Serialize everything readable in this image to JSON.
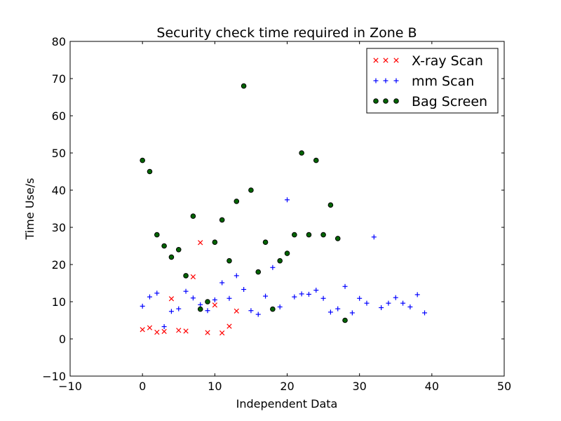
{
  "chart_data": {
    "type": "scatter",
    "title": "Security check time required in Zone B",
    "xlabel": "Independent Data",
    "ylabel": "Time Use/s",
    "xlim": [
      -10,
      50
    ],
    "ylim": [
      -10,
      80
    ],
    "xticks": [
      -10,
      0,
      10,
      20,
      30,
      40,
      50
    ],
    "yticks": [
      -10,
      0,
      10,
      20,
      30,
      40,
      50,
      60,
      70,
      80
    ],
    "xtick_labels": [
      "−10",
      "0",
      "10",
      "20",
      "30",
      "40",
      "50"
    ],
    "ytick_labels": [
      "−10",
      "0",
      "10",
      "20",
      "30",
      "40",
      "50",
      "60",
      "70",
      "80"
    ],
    "grid": false,
    "legend_position": "top-right",
    "series": [
      {
        "name": "X-ray Scan",
        "marker": "x",
        "color": "#ff0000",
        "x": [
          0,
          1,
          2,
          3,
          4,
          5,
          6,
          7,
          8,
          9,
          10,
          11,
          12,
          13
        ],
        "y": [
          2.5,
          3,
          1.8,
          2,
          10.8,
          2.3,
          2.1,
          16.7,
          25.9,
          1.7,
          9.1,
          1.6,
          3.4,
          7.5
        ]
      },
      {
        "name": "mm Scan",
        "marker": "+",
        "color": "#0000ff",
        "x": [
          0,
          1,
          2,
          3,
          4,
          5,
          6,
          7,
          8,
          9,
          10,
          11,
          12,
          13,
          14,
          15,
          16,
          17,
          18,
          19,
          20,
          21,
          22,
          23,
          24,
          25,
          26,
          27,
          28,
          29,
          30,
          31,
          32,
          33,
          34,
          35,
          36,
          37,
          38,
          39
        ],
        "y": [
          8.8,
          11.3,
          12.3,
          3.3,
          7.4,
          8.1,
          12.8,
          11,
          9.2,
          7.6,
          10.5,
          15.1,
          10.9,
          17,
          13.3,
          7.6,
          6.6,
          11.5,
          19.2,
          8.6,
          37.4,
          11.3,
          12.1,
          12,
          13.1,
          10.9,
          7.2,
          8.1,
          14.1,
          7,
          10.9,
          9.6,
          27.4,
          8.4,
          9.6,
          11.1,
          9.6,
          8.6,
          11.9,
          7
        ]
      },
      {
        "name": "Bag Screen",
        "marker": "o",
        "color": "#006400",
        "x": [
          0,
          1,
          2,
          3,
          4,
          5,
          6,
          7,
          8,
          9,
          10,
          11,
          12,
          13,
          14,
          15,
          16,
          17,
          18,
          19,
          20,
          21,
          22,
          23,
          24,
          25,
          26,
          27,
          28
        ],
        "y": [
          48,
          45,
          28,
          25,
          22,
          24,
          17,
          33,
          8,
          10,
          26,
          32,
          21,
          37,
          68,
          40,
          18,
          26,
          8,
          21,
          23,
          28,
          50,
          28,
          48,
          28,
          36,
          27,
          5
        ]
      }
    ]
  }
}
